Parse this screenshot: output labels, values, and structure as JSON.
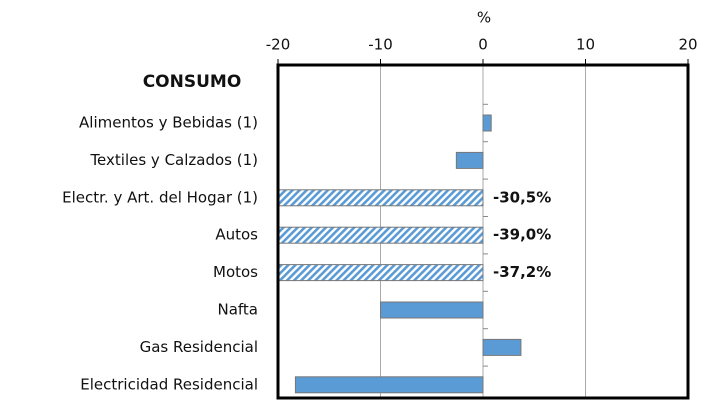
{
  "chart_data": {
    "type": "bar",
    "orientation": "horizontal",
    "x_label": "%",
    "group_label": "CONSUMO",
    "categories": [
      "Alimentos y Bebidas (1)",
      "Textiles y Calzados (1)",
      "Electr. y Art. del Hogar (1)",
      "Autos",
      "Motos",
      "Nafta",
      "Gas Residencial",
      "Electricidad Residencial"
    ],
    "values": [
      0.8,
      -2.6,
      -30.5,
      -39.0,
      -37.2,
      -10.0,
      3.7,
      -18.3
    ],
    "value_labels": [
      null,
      null,
      "-30,5%",
      "-39,0%",
      "-37,2%",
      null,
      null,
      null
    ],
    "color": "#5b9bd5",
    "xlim": [
      -20,
      20
    ],
    "xticks": [
      -20,
      -10,
      0,
      10,
      20
    ],
    "grid": true
  }
}
